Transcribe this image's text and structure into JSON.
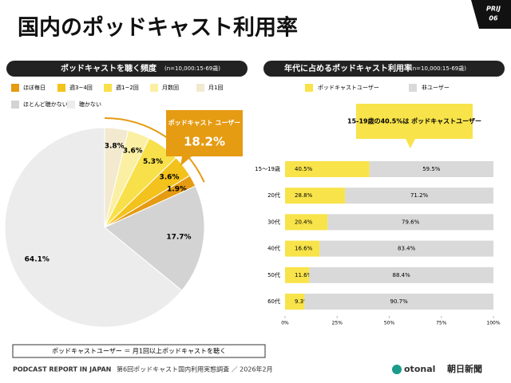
{
  "header": {
    "title": "国内のポッドキャスト利用率",
    "badge": "PRIJ",
    "page": "06"
  },
  "chart_data": [
    {
      "type": "pie",
      "title": "ポッドキャストを聴く頻度",
      "subtitle": "(n=10,000:15-69歳)",
      "categories": [
        "ほぼ毎日",
        "週3~4回",
        "週1~2回",
        "月数回",
        "月1回",
        "ほとんど聴かない",
        "聴かない"
      ],
      "values": [
        1.9,
        3.6,
        5.3,
        3.6,
        3.8,
        17.7,
        64.1
      ],
      "value_labels": [
        "1.9%",
        "3.6%",
        "5.3%",
        "3.6%",
        "3.8%",
        "17.7%",
        "64.1%"
      ],
      "colors": [
        "#e59b12",
        "#f4c21c",
        "#f8e04a",
        "#fbefa3",
        "#f2e9cf",
        "#d3d3d3",
        "#ececec"
      ],
      "annotation": {
        "label": "ポッドキャスト ユーザー",
        "value": "18.2%"
      }
    },
    {
      "type": "stacked-barh",
      "title": "年代に占めるポッドキャスト利用率",
      "subtitle": "(n=10,000:15-69歳)",
      "categories": [
        "15～19歳",
        "20代",
        "30代",
        "40代",
        "50代",
        "60代"
      ],
      "series": [
        {
          "name": "ポッドキャストユーザー",
          "color": "#f8e34a",
          "values": [
            40.5,
            28.8,
            20.4,
            16.6,
            11.6,
            9.3
          ],
          "value_labels": [
            "40.5%",
            "28.8%",
            "20.4%",
            "16.6%",
            "11.6%",
            "9.3%"
          ]
        },
        {
          "name": "非ユーザー",
          "color": "#d9d9d9",
          "values": [
            59.5,
            71.2,
            79.6,
            83.4,
            88.4,
            90.7
          ],
          "value_labels": [
            "59.5%",
            "71.2%",
            "79.6%",
            "83.4%",
            "88.4%",
            "90.7%"
          ]
        }
      ],
      "xlim": [
        0,
        100
      ],
      "xticks": [
        {
          "value": 0,
          "label": "0%"
        },
        {
          "value": 25,
          "label": "25%"
        },
        {
          "value": 50,
          "label": "50%"
        },
        {
          "value": 75,
          "label": "75%"
        },
        {
          "value": 100,
          "label": "100%"
        }
      ],
      "annotation": "15-19歳の40.5%は ポッドキャストユーザー"
    }
  ],
  "note": "ポッドキャストユーザー ＝ 月1回以上ポッドキャストを聴く",
  "footer": {
    "report": "PODCAST REPORT IN JAPAN",
    "survey": "第6回ポッドキャスト国内利用実態調査 ／ 2026年2月",
    "logo1": "otonal",
    "logo2": "朝日新聞"
  }
}
